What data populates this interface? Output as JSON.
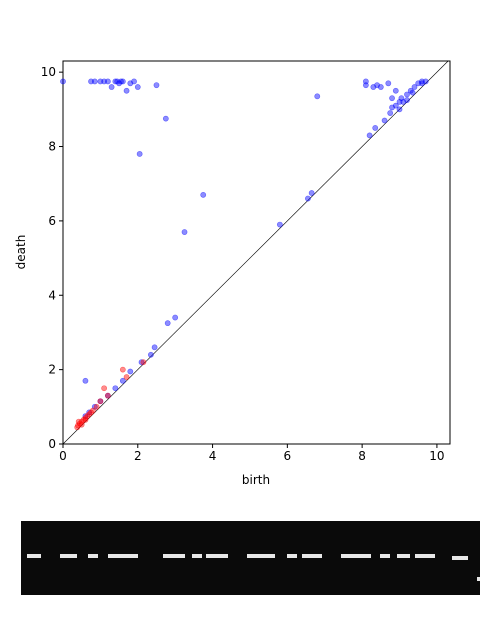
{
  "chart_data": {
    "type": "scatter",
    "xlabel": "birth",
    "ylabel": "death",
    "xlim": [
      0,
      10.35
    ],
    "ylim": [
      0,
      10.3
    ],
    "xticks": [
      0,
      2,
      4,
      6,
      8,
      10
    ],
    "yticks": [
      0,
      2,
      4,
      6,
      8,
      10
    ],
    "diagonal": true,
    "series": [
      {
        "color": "blue",
        "x": [
          0,
          0.75,
          0.85,
          1.0,
          1.1,
          1.2,
          1.3,
          1.4,
          1.45,
          1.5,
          1.55,
          1.6,
          1.7,
          1.8,
          1.9,
          2.0,
          2.5,
          2.75,
          2.05,
          3.75,
          3.25,
          6.8,
          8.1,
          8.2,
          8.35,
          5.8,
          6.55,
          6.65,
          3.0,
          2.8,
          2.45,
          2.35,
          2.1,
          1.8,
          1.6,
          0.6,
          1.4,
          1.2,
          1.0,
          0.85,
          0.7,
          0.6,
          8.5,
          8.7,
          8.8,
          8.9,
          9.0,
          9.1,
          9.2,
          9.3,
          9.4,
          9.5,
          9.6,
          8.8,
          8.9,
          9.0,
          9.2,
          9.35,
          8.6,
          8.75,
          9.6,
          8.1,
          9.05,
          9.7,
          8.3,
          8.4
        ],
        "values": [
          9.75,
          9.75,
          9.75,
          9.75,
          9.75,
          9.75,
          9.6,
          9.75,
          9.75,
          9.7,
          9.75,
          9.75,
          9.5,
          9.7,
          9.75,
          9.6,
          9.65,
          8.75,
          7.8,
          6.7,
          5.7,
          9.35,
          9.65,
          8.3,
          8.5,
          5.9,
          6.6,
          6.75,
          3.4,
          3.25,
          2.6,
          2.4,
          2.2,
          1.95,
          1.7,
          1.7,
          1.5,
          1.3,
          1.15,
          1.0,
          0.85,
          0.75,
          9.6,
          9.7,
          9.3,
          9.1,
          9.0,
          9.2,
          9.4,
          9.5,
          9.6,
          9.7,
          9.7,
          9.05,
          9.5,
          9.2,
          9.25,
          9.45,
          8.7,
          8.9,
          9.75,
          9.75,
          9.3,
          9.75,
          9.6,
          9.65
        ]
      },
      {
        "color": "red",
        "x": [
          0.4,
          0.45,
          0.5,
          0.55,
          0.6,
          0.65,
          0.7,
          0.75,
          0.8,
          0.9,
          1.0,
          1.1,
          1.2,
          1.6,
          1.7,
          2.15,
          0.38,
          0.5,
          0.42,
          0.6
        ],
        "values": [
          0.5,
          0.55,
          0.6,
          0.65,
          0.7,
          0.75,
          0.8,
          0.85,
          0.9,
          1.0,
          1.15,
          1.5,
          1.3,
          2.0,
          1.8,
          2.2,
          0.45,
          0.52,
          0.6,
          0.65
        ]
      }
    ]
  }
}
